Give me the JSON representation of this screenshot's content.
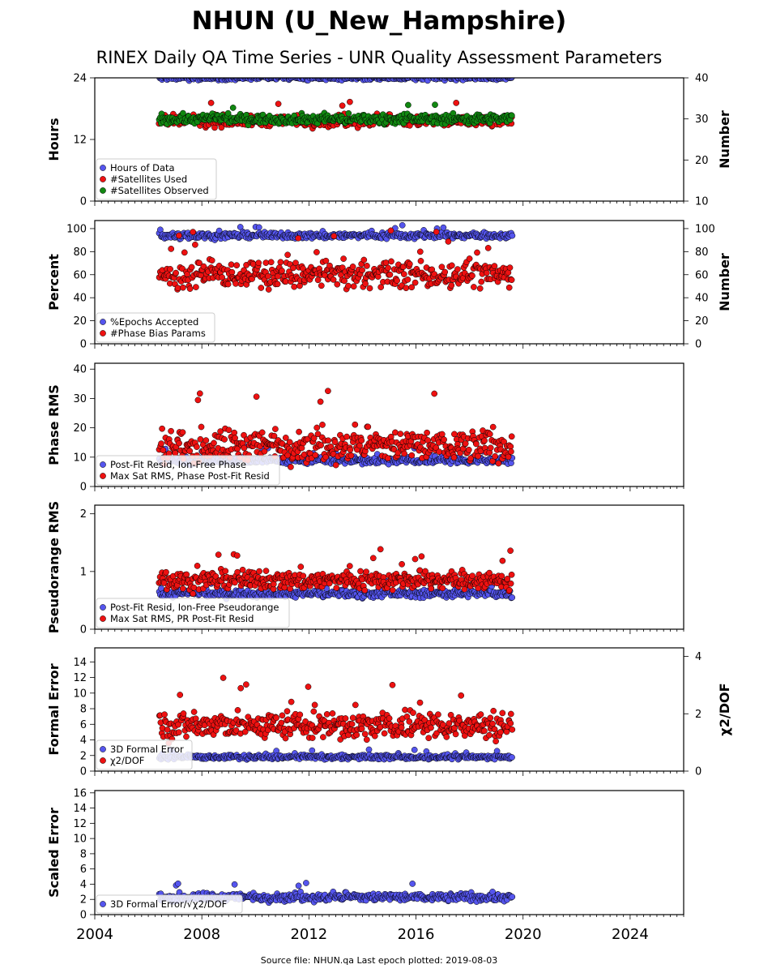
{
  "title": "NHUN (U_New_Hampshire)",
  "subtitle": "RINEX Daily QA Time Series - UNR Quality Assessment Parameters",
  "footer": "Source file: NHUN.qa Last epoch plotted: 2019-08-03",
  "colors": {
    "blue": "#5555ee",
    "red": "#ee1111",
    "green": "#118811",
    "edge": "#000000"
  },
  "chart_data": [
    {
      "type": "scatter",
      "xlim": [
        2004,
        2026
      ],
      "x_ticks": [
        2004,
        2008,
        2012,
        2016,
        2020,
        2024
      ],
      "x_tick_labels": [
        "2004",
        "2008",
        "2012",
        "2016",
        "2020",
        "2024"
      ],
      "ylabel": "Hours",
      "ylim": [
        0,
        24
      ],
      "y_ticks": [
        0,
        12,
        24
      ],
      "y2label": "Number",
      "y2lim": [
        10,
        40
      ],
      "y2_ticks": [
        10,
        20,
        30,
        40
      ],
      "legend": "lower-left",
      "series": [
        {
          "name": "Hours of Data",
          "color": "#5555ee",
          "axis": "left",
          "typical": 24,
          "spread": 0.3,
          "x_range": [
            2006.4,
            2019.6
          ]
        },
        {
          "name": "#Satellites Used",
          "color": "#ee1111",
          "axis": "right",
          "typical": 29.5,
          "spread": 1.0,
          "x_range": [
            2006.4,
            2019.6
          ]
        },
        {
          "name": "#Satellites Observed",
          "color": "#118811",
          "axis": "right",
          "typical": 30,
          "spread": 0.8,
          "x_range": [
            2006.4,
            2019.6
          ]
        }
      ]
    },
    {
      "type": "scatter",
      "xlim": [
        2004,
        2026
      ],
      "x_ticks": [
        2004,
        2008,
        2012,
        2016,
        2020,
        2024
      ],
      "ylabel": "Percent",
      "ylim": [
        0,
        107
      ],
      "y_ticks": [
        0,
        20,
        40,
        60,
        80,
        100
      ],
      "y2label": "Number",
      "y2lim": [
        0,
        107
      ],
      "y2_ticks": [
        0,
        20,
        40,
        60,
        80,
        100
      ],
      "legend": "lower-left",
      "series": [
        {
          "name": "%Epochs Accepted",
          "color": "#5555ee",
          "axis": "left",
          "typical": 94,
          "spread": 2,
          "x_range": [
            2006.4,
            2019.6
          ]
        },
        {
          "name": "#Phase Bias Params",
          "color": "#ee1111",
          "axis": "right",
          "typical": 60,
          "spread": 8,
          "x_range": [
            2006.4,
            2019.6
          ]
        }
      ]
    },
    {
      "type": "scatter",
      "xlim": [
        2004,
        2026
      ],
      "x_ticks": [
        2004,
        2008,
        2012,
        2016,
        2020,
        2024
      ],
      "ylabel": "Phase RMS",
      "ylim": [
        0,
        42
      ],
      "y_ticks": [
        0,
        10,
        20,
        30,
        40
      ],
      "legend": "lower-left",
      "series": [
        {
          "name": "Post-Fit Resid, Ion-Free Phase",
          "color": "#5555ee",
          "axis": "left",
          "typical": 9,
          "spread": 1,
          "x_range": [
            2006.4,
            2019.6
          ]
        },
        {
          "name": "Max Sat RMS, Phase Post-Fit Resid",
          "color": "#ee1111",
          "axis": "left",
          "typical": 14,
          "spread": 4,
          "x_range": [
            2006.4,
            2019.6
          ]
        }
      ]
    },
    {
      "type": "scatter",
      "xlim": [
        2004,
        2026
      ],
      "x_ticks": [
        2004,
        2008,
        2012,
        2016,
        2020,
        2024
      ],
      "ylabel": "Pseudorange RMS",
      "ylim": [
        0,
        2.15
      ],
      "y_ticks": [
        0,
        1,
        2
      ],
      "legend": "lower-left",
      "series": [
        {
          "name": "Post-Fit Resid, Ion-Free Pseudorange",
          "color": "#5555ee",
          "axis": "left",
          "typical": 0.62,
          "spread": 0.05,
          "x_range": [
            2006.4,
            2019.6
          ]
        },
        {
          "name": "Max Sat RMS, PR Post-Fit Resid",
          "color": "#ee1111",
          "axis": "left",
          "typical": 0.85,
          "spread": 0.12,
          "x_range": [
            2006.4,
            2019.6
          ]
        }
      ]
    },
    {
      "type": "scatter",
      "xlim": [
        2004,
        2026
      ],
      "x_ticks": [
        2004,
        2008,
        2012,
        2016,
        2020,
        2024
      ],
      "ylabel": "Formal Error",
      "ylim": [
        0,
        15.8
      ],
      "y_ticks": [
        0,
        2,
        4,
        6,
        8,
        10,
        12,
        14
      ],
      "y2label": "χ2/DOF",
      "y2lim": [
        0,
        4.3
      ],
      "y2_ticks": [
        0,
        2,
        4
      ],
      "legend": "lower-left",
      "series": [
        {
          "name": "3D Formal Error",
          "color": "#5555ee",
          "axis": "left",
          "typical": 1.8,
          "spread": 0.2,
          "x_range": [
            2006.4,
            2019.6
          ]
        },
        {
          "name": "χ2/DOF",
          "color": "#ee1111",
          "axis": "right",
          "typical": 1.6,
          "spread": 0.35,
          "x_range": [
            2006.4,
            2019.6
          ]
        }
      ]
    },
    {
      "type": "scatter",
      "xlim": [
        2004,
        2026
      ],
      "x_ticks": [
        2004,
        2008,
        2012,
        2016,
        2020,
        2024
      ],
      "ylabel": "Scaled Error",
      "ylim": [
        0,
        16.3
      ],
      "y_ticks": [
        0,
        2,
        4,
        6,
        8,
        10,
        12,
        14,
        16
      ],
      "legend": "lower-left",
      "series": [
        {
          "name": "3D Formal Error/√χ2/DOF",
          "color": "#5555ee",
          "axis": "left",
          "typical": 2.3,
          "spread": 0.4,
          "x_range": [
            2006.4,
            2019.6
          ]
        }
      ]
    }
  ]
}
